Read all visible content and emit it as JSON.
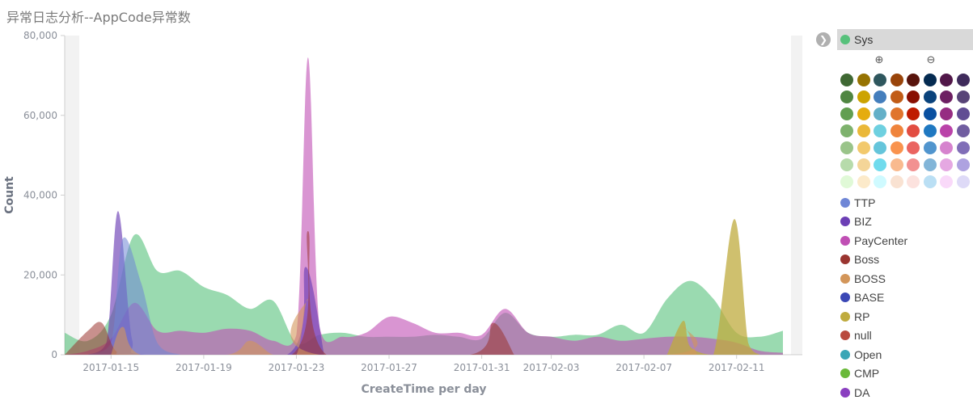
{
  "title": "异常日志分析--AppCode异常数",
  "legend_toggle_icon": "chevron-right-icon",
  "legend": {
    "selected": {
      "name": "Sys",
      "color": "#57c17b"
    },
    "zoom_in_icon": "zoom-in-icon",
    "zoom_out_icon": "zoom-out-icon",
    "palette": [
      [
        "#3f6833",
        "#967302",
        "#2f575e",
        "#99440a",
        "#58140c",
        "#052b51",
        "#511749",
        "#3f2b5b"
      ],
      [
        "#508642",
        "#cca300",
        "#447ebc",
        "#c15c17",
        "#890f02",
        "#0a437c",
        "#6d1f62",
        "#584477"
      ],
      [
        "#629e51",
        "#e5ac0e",
        "#64b0c8",
        "#e0752d",
        "#bf1b00",
        "#0a50a1",
        "#962d82",
        "#614d93"
      ],
      [
        "#7eb26d",
        "#eab839",
        "#6ed0e0",
        "#ef843c",
        "#e24d42",
        "#1f78c1",
        "#ba43a9",
        "#705da0"
      ],
      [
        "#9ac48a",
        "#f2c96d",
        "#65c5db",
        "#f9934e",
        "#ea6460",
        "#5195ce",
        "#d683ce",
        "#806eb7"
      ],
      [
        "#b7dbab",
        "#f4d598",
        "#70dbed",
        "#f9ba8f",
        "#f29191",
        "#82b5d8",
        "#e5a8e2",
        "#aea2e0"
      ],
      [
        "#e0f9d7",
        "#fceaca",
        "#cffaff",
        "#f9e2d2",
        "#fce2de",
        "#badff4",
        "#f9d9f9",
        "#dedaf7"
      ]
    ],
    "items": [
      {
        "name": "TTP",
        "color": "#6f86d6"
      },
      {
        "name": "BIZ",
        "color": "#6c3fb5"
      },
      {
        "name": "PayCenter",
        "color": "#c04fb4"
      },
      {
        "name": "Boss",
        "color": "#9a3530"
      },
      {
        "name": "BOSS",
        "color": "#d3965a"
      },
      {
        "name": "BASE",
        "color": "#3a47b5"
      },
      {
        "name": "RP",
        "color": "#bfab3e"
      },
      {
        "name": "null",
        "color": "#b94a3e"
      },
      {
        "name": "Open",
        "color": "#3aa6b6"
      },
      {
        "name": "CMP",
        "color": "#6ab93a"
      },
      {
        "name": "DA",
        "color": "#8a3fc0"
      }
    ]
  },
  "chart_data": {
    "type": "area",
    "ylabel": "Count",
    "xlabel": "CreateTime per day",
    "ylim": [
      0,
      80000
    ],
    "yticks": [
      0,
      20000,
      40000,
      60000,
      80000
    ],
    "ytick_labels": [
      "0",
      "20,000",
      "40,000",
      "60,000",
      "80,000"
    ],
    "xlim": [
      "2017-01-13",
      "2017-02-13"
    ],
    "xticks": [
      "2017-01-15",
      "2017-01-19",
      "2017-01-23",
      "2017-01-27",
      "2017-01-31",
      "2017-02-03",
      "2017-02-07",
      "2017-02-11"
    ],
    "series": [
      {
        "name": "Sys",
        "color": "#57c17b",
        "opacity": 0.6,
        "values": [
          [
            "2017-01-13",
            5500
          ],
          [
            "2017-01-14",
            3500
          ],
          [
            "2017-01-15",
            10000
          ],
          [
            "2017-01-16",
            30000
          ],
          [
            "2017-01-17",
            21000
          ],
          [
            "2017-01-18",
            21000
          ],
          [
            "2017-01-19",
            17000
          ],
          [
            "2017-01-20",
            15000
          ],
          [
            "2017-01-21",
            11500
          ],
          [
            "2017-01-22",
            13500
          ],
          [
            "2017-01-23",
            3000
          ],
          [
            "2017-01-24",
            5000
          ],
          [
            "2017-01-25",
            5500
          ],
          [
            "2017-01-26",
            4500
          ],
          [
            "2017-01-27",
            4500
          ],
          [
            "2017-01-28",
            4500
          ],
          [
            "2017-01-29",
            5000
          ],
          [
            "2017-01-30",
            4500
          ],
          [
            "2017-01-31",
            4000
          ],
          [
            "2017-02-01",
            10500
          ],
          [
            "2017-02-02",
            5500
          ],
          [
            "2017-02-03",
            4500
          ],
          [
            "2017-02-04",
            5000
          ],
          [
            "2017-02-05",
            5000
          ],
          [
            "2017-02-06",
            7500
          ],
          [
            "2017-02-07",
            5500
          ],
          [
            "2017-02-08",
            14000
          ],
          [
            "2017-02-09",
            18500
          ],
          [
            "2017-02-10",
            14000
          ],
          [
            "2017-02-11",
            5500
          ],
          [
            "2017-02-12",
            4500
          ],
          [
            "2017-02-13",
            6000
          ]
        ]
      },
      {
        "name": "PayCenter",
        "color": "#c04fb4",
        "opacity": 0.6,
        "values": [
          [
            "2017-01-13",
            0
          ],
          [
            "2017-01-14",
            1000
          ],
          [
            "2017-01-15",
            4000
          ],
          [
            "2017-01-16",
            13000
          ],
          [
            "2017-01-17",
            6000
          ],
          [
            "2017-01-18",
            6000
          ],
          [
            "2017-01-19",
            5500
          ],
          [
            "2017-01-20",
            6500
          ],
          [
            "2017-01-21",
            6000
          ],
          [
            "2017-01-22",
            3500
          ],
          [
            "2017-01-23",
            5000
          ],
          [
            "2017-01-23.5",
            74500
          ],
          [
            "2017-01-24",
            7000
          ],
          [
            "2017-01-25",
            4500
          ],
          [
            "2017-01-26",
            5500
          ],
          [
            "2017-01-27",
            9500
          ],
          [
            "2017-01-28",
            8000
          ],
          [
            "2017-01-29",
            5500
          ],
          [
            "2017-01-30",
            5500
          ],
          [
            "2017-01-31",
            5000
          ],
          [
            "2017-02-01",
            11500
          ],
          [
            "2017-02-02",
            5500
          ],
          [
            "2017-02-03",
            4500
          ],
          [
            "2017-02-04",
            3500
          ],
          [
            "2017-02-05",
            4500
          ],
          [
            "2017-02-06",
            3500
          ],
          [
            "2017-02-07",
            4000
          ],
          [
            "2017-02-08",
            4500
          ],
          [
            "2017-02-09",
            4500
          ],
          [
            "2017-02-10",
            4000
          ],
          [
            "2017-02-11",
            3000
          ],
          [
            "2017-02-12",
            1000
          ],
          [
            "2017-02-13",
            500
          ]
        ]
      },
      {
        "name": "RP",
        "color": "#bfab3e",
        "opacity": 0.75,
        "values": [
          [
            "2017-02-08",
            0
          ],
          [
            "2017-02-08.7",
            8500
          ],
          [
            "2017-02-09",
            2000
          ],
          [
            "2017-02-10",
            0
          ],
          [
            "2017-02-10.9",
            34000
          ],
          [
            "2017-02-11.5",
            3000
          ],
          [
            "2017-02-12",
            0
          ]
        ]
      },
      {
        "name": "BIZ",
        "color": "#6c3fb5",
        "opacity": 0.65,
        "values": [
          [
            "2017-01-14",
            0
          ],
          [
            "2017-01-14.8",
            3000
          ],
          [
            "2017-01-15.3",
            36000
          ],
          [
            "2017-01-15.9",
            4000
          ],
          [
            "2017-01-16.5",
            0
          ],
          [
            "2017-01-22.6",
            0
          ],
          [
            "2017-01-23.4",
            22000
          ],
          [
            "2017-01-24.2",
            0
          ]
        ]
      },
      {
        "name": "TTP",
        "color": "#6f86d6",
        "opacity": 0.55,
        "values": [
          [
            "2017-01-14",
            0
          ],
          [
            "2017-01-15",
            3000
          ],
          [
            "2017-01-15.5",
            29000
          ],
          [
            "2017-01-16.3",
            18000
          ],
          [
            "2017-01-17",
            3000
          ],
          [
            "2017-01-18",
            0
          ]
        ]
      },
      {
        "name": "Boss",
        "color": "#9a3530",
        "opacity": 0.55,
        "values": [
          [
            "2017-01-13",
            0
          ],
          [
            "2017-01-14",
            6000
          ],
          [
            "2017-01-14.6",
            8000
          ],
          [
            "2017-01-15.2",
            1000
          ],
          [
            "2017-01-16",
            0
          ],
          [
            "2017-01-22.8",
            0
          ],
          [
            "2017-01-23.5",
            31000
          ],
          [
            "2017-01-24.3",
            0
          ],
          [
            "2017-01-30.5",
            0
          ],
          [
            "2017-01-31.5",
            8000
          ],
          [
            "2017-02-01.4",
            0
          ]
        ]
      },
      {
        "name": "BOSS",
        "color": "#d3965a",
        "opacity": 0.6,
        "values": [
          [
            "2017-01-15",
            0
          ],
          [
            "2017-01-15.5",
            7000
          ],
          [
            "2017-01-16.3",
            0
          ],
          [
            "2017-01-20",
            0
          ],
          [
            "2017-01-21",
            3500
          ],
          [
            "2017-01-22",
            0
          ],
          [
            "2017-01-23",
            0
          ],
          [
            "2017-01-23.5",
            14000
          ],
          [
            "2017-01-24",
            0
          ],
          [
            "2017-02-08",
            0
          ],
          [
            "2017-02-08.7",
            7000
          ],
          [
            "2017-02-09.3",
            0
          ]
        ]
      }
    ]
  }
}
